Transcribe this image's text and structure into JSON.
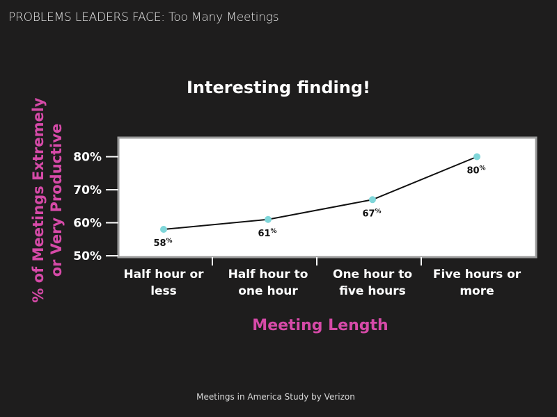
{
  "header": {
    "text": "PROBLEMS LEADERS FACE:  Too Many Meetings"
  },
  "footer": {
    "text": "Meetings in America Study by Verizon"
  },
  "chart_data": {
    "type": "line",
    "title": "Interesting finding!",
    "xlabel": "Meeting Length",
    "ylabel": "% of Meetings Extremely or Very Productive",
    "categories": [
      "Half hour or less",
      "Half hour to one hour",
      "One hour to five hours",
      "Five hours or more"
    ],
    "values": [
      58,
      61,
      67,
      80
    ],
    "data_labels": [
      "58",
      "61",
      "67",
      "80"
    ],
    "label_suffix": "%",
    "ylim": [
      50,
      82
    ],
    "yticks": [
      50,
      60,
      70,
      80
    ],
    "ytick_labels": [
      "50%",
      "60%",
      "70%",
      "80%"
    ],
    "grid": false,
    "colors": {
      "line": "#111111",
      "marker": "#7fd6d9",
      "plot_bg": "#ffffff",
      "axis_title": "#d64aa8"
    }
  }
}
